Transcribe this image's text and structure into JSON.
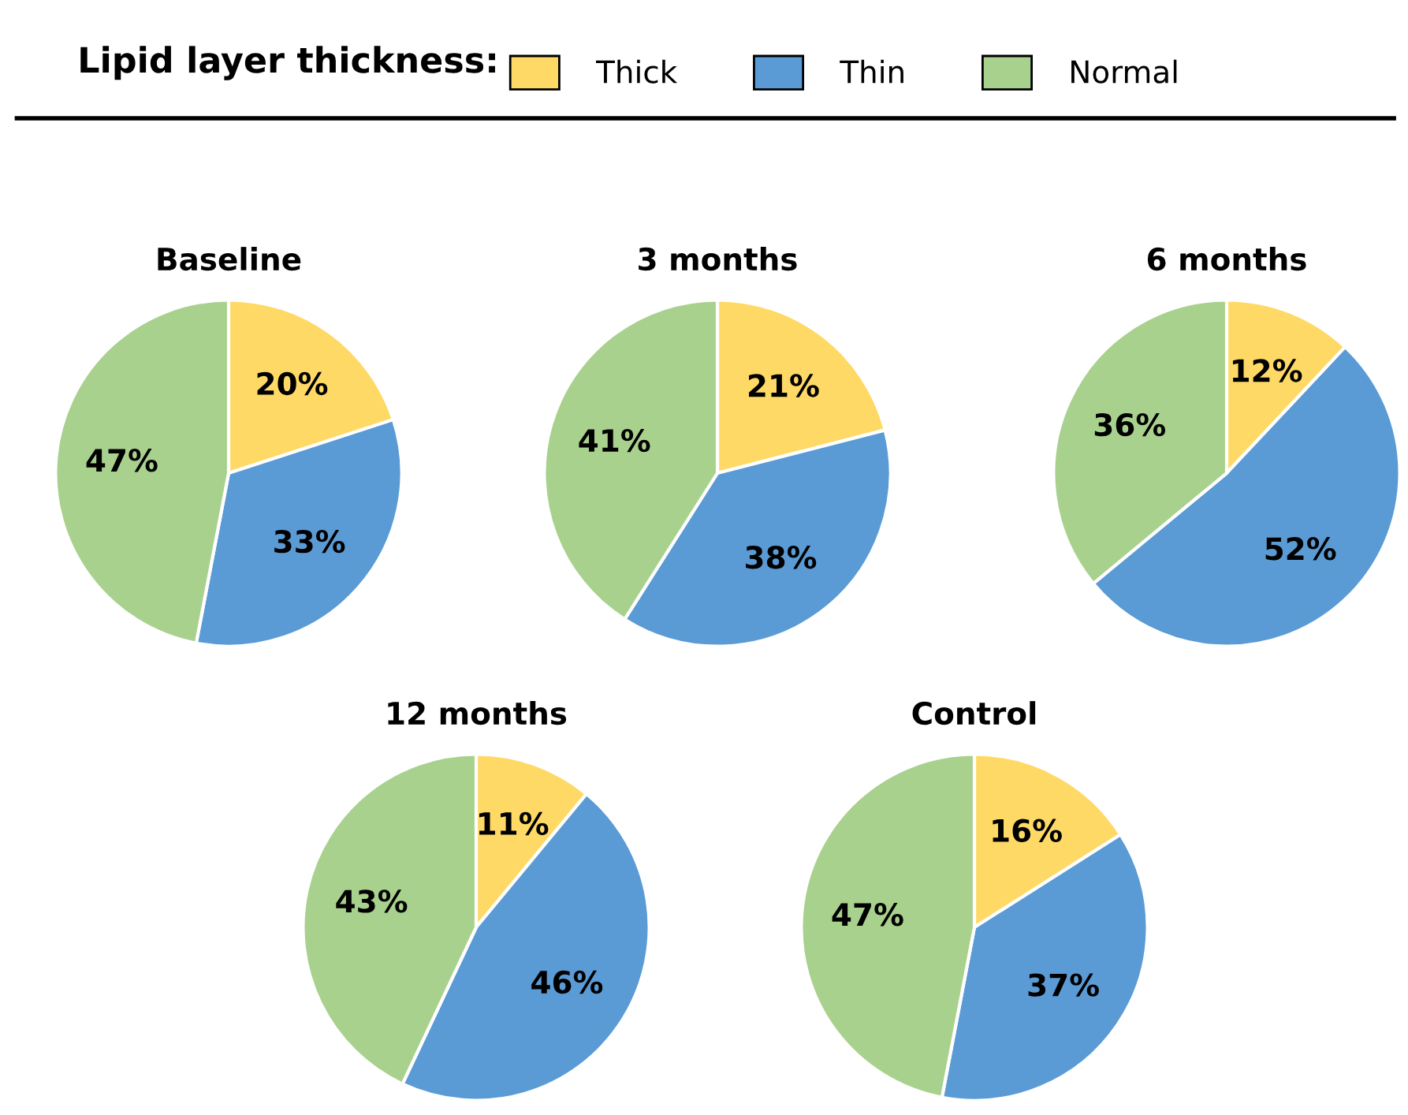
{
  "chart_data": [
    {
      "type": "pie",
      "title": "Baseline",
      "legend_title": "Lipid layer thickness:",
      "legend": "top",
      "categories": [
        "Thick",
        "Thin",
        "Normal"
      ],
      "values": [
        20,
        33,
        47
      ],
      "value_labels": [
        "20%",
        "33%",
        "47%"
      ],
      "colors": [
        "#ffd966",
        "#5b9bd5",
        "#a9d18e"
      ]
    },
    {
      "type": "pie",
      "title": "3 months",
      "categories": [
        null,
        null,
        null
      ],
      "values": [
        21,
        38,
        41
      ],
      "value_labels": [
        "21%",
        "38%",
        "41%"
      ],
      "colors": [
        "#ffd966",
        "#5b9bd5",
        "#a9d18e"
      ]
    },
    {
      "type": "pie",
      "title": "6 months",
      "categories": [
        null,
        null,
        null
      ],
      "values": [
        12,
        52,
        36
      ],
      "value_labels": [
        "12%",
        "52%",
        "36%"
      ],
      "colors": [
        "#ffd966",
        "#5b9bd5",
        "#a9d18e"
      ]
    },
    {
      "type": "pie",
      "title": "12 months",
      "categories": [
        null,
        null,
        null
      ],
      "values": [
        11,
        46,
        43
      ],
      "value_labels": [
        "11%",
        "46%",
        "43%"
      ],
      "colors": [
        "#ffd966",
        "#5b9bd5",
        "#a9d18e"
      ]
    },
    {
      "type": "pie",
      "title": "Control",
      "categories": [
        null,
        null,
        null
      ],
      "values": [
        16,
        37,
        47
      ],
      "value_labels": [
        "16%",
        "37%",
        "47%"
      ],
      "colors": [
        "#ffd966",
        "#5b9bd5",
        "#a9d18e"
      ]
    }
  ]
}
